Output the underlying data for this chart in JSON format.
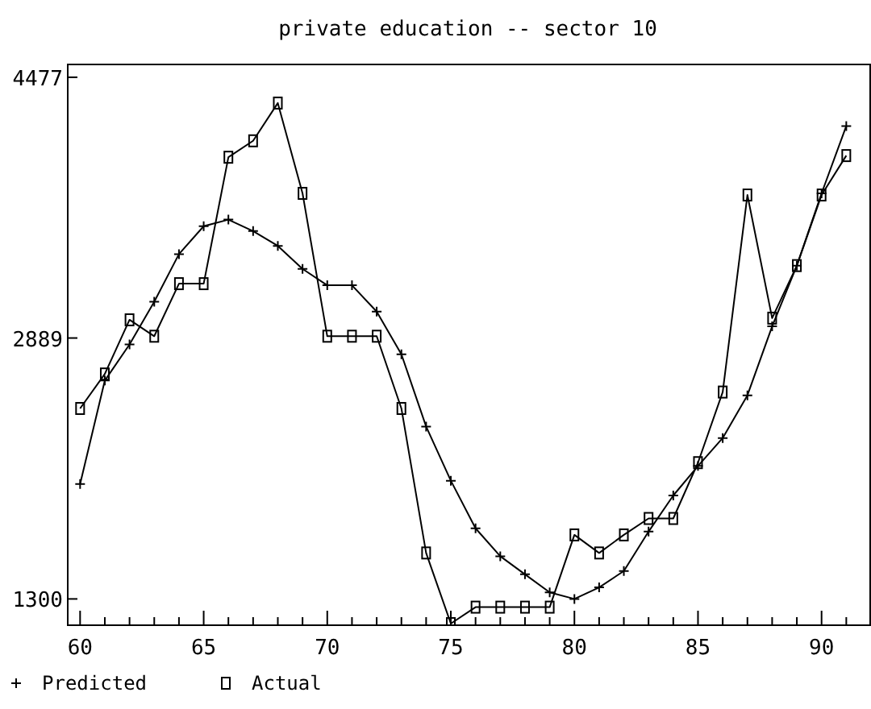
{
  "chart_data": {
    "type": "line",
    "title": "private education -- sector 10",
    "x": [
      60,
      61,
      62,
      63,
      64,
      65,
      66,
      67,
      68,
      69,
      70,
      71,
      72,
      73,
      74,
      75,
      76,
      77,
      78,
      79,
      80,
      81,
      82,
      83,
      84,
      85,
      86,
      87,
      88,
      89,
      90,
      91
    ],
    "series": [
      {
        "name": "Predicted",
        "color": "#000000",
        "marker": "cross",
        "values": [
          2000,
          2630,
          2850,
          3110,
          3400,
          3570,
          3610,
          3540,
          3450,
          3310,
          3210,
          3210,
          3050,
          2790,
          2350,
          2020,
          1730,
          1560,
          1450,
          1340,
          1300,
          1370,
          1470,
          1710,
          1930,
          2110,
          2280,
          2540,
          2960,
          3330,
          3770,
          4180
        ]
      },
      {
        "name": "Actual",
        "color": "#000000",
        "marker": "square",
        "values": [
          2460,
          2670,
          3000,
          2900,
          3220,
          3220,
          3990,
          4090,
          4320,
          3770,
          2900,
          2900,
          2900,
          2460,
          1580,
          1150,
          1250,
          1250,
          1250,
          1250,
          1690,
          1580,
          1690,
          1790,
          1790,
          2130,
          2560,
          3760,
          3010,
          3330,
          3760,
          4000
        ]
      }
    ],
    "xlim": [
      59.5,
      92
    ],
    "ylim": [
      1140,
      4555
    ],
    "xticks": [
      60,
      {
        "value": 61,
        "label": null
      },
      {
        "value": 62,
        "label": null
      },
      {
        "value": 63,
        "label": null
      },
      {
        "value": 64,
        "label": null
      },
      65,
      {
        "value": 66,
        "label": null
      },
      {
        "value": 67,
        "label": null
      },
      {
        "value": 68,
        "label": null
      },
      {
        "value": 69,
        "label": null
      },
      70,
      {
        "value": 71,
        "label": null
      },
      {
        "value": 72,
        "label": null
      },
      {
        "value": 73,
        "label": null
      },
      {
        "value": 74,
        "label": null
      },
      75,
      {
        "value": 76,
        "label": null
      },
      {
        "value": 77,
        "label": null
      },
      {
        "value": 78,
        "label": null
      },
      {
        "value": 79,
        "label": null
      },
      80,
      {
        "value": 81,
        "label": null
      },
      {
        "value": 82,
        "label": null
      },
      {
        "value": 83,
        "label": null
      },
      {
        "value": 84,
        "label": null
      },
      85,
      {
        "value": 86,
        "label": null
      },
      {
        "value": 87,
        "label": null
      },
      {
        "value": 88,
        "label": null
      },
      {
        "value": 89,
        "label": null
      },
      90,
      {
        "value": 91,
        "label": null
      }
    ],
    "yticks": [
      1300,
      2889,
      4477
    ],
    "legend": "bottom",
    "grid": false,
    "line_style": "solid"
  }
}
